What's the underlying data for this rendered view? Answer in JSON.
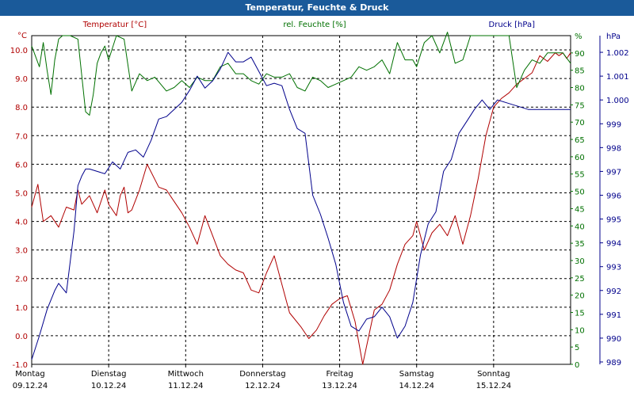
{
  "title": "Temperatur, Feuchte & Druck",
  "chart_data": {
    "type": "line",
    "title": "Temperatur, Feuchte & Druck",
    "x_days": [
      {
        "weekday": "Montag",
        "date": "09.12.24"
      },
      {
        "weekday": "Dienstag",
        "date": "10.12.24"
      },
      {
        "weekday": "Mittwoch",
        "date": "11.12.24"
      },
      {
        "weekday": "Donnerstag",
        "date": "12.12.24"
      },
      {
        "weekday": "Freitag",
        "date": "13.12.24"
      },
      {
        "weekday": "Samstag",
        "date": "14.12.24"
      },
      {
        "weekday": "Sonntag",
        "date": "15.12.24"
      }
    ],
    "x_unit": "days since Montag 09.12.24 00:00",
    "xlim": [
      0,
      7
    ],
    "axes": {
      "temperature": {
        "label": "Temperatur [°C]",
        "unit": "°C",
        "ylim": [
          -1,
          10.5
        ],
        "ticks": [
          "-1.0",
          "0.0",
          "1.0",
          "2.0",
          "3.0",
          "4.0",
          "5.0",
          "6.0",
          "7.0",
          "8.0",
          "9.0",
          "10.0"
        ],
        "color": "#b00000"
      },
      "humidity": {
        "label": "rel. Feuchte [%]",
        "unit": "%",
        "ylim": [
          0,
          95
        ],
        "ticks": [
          "0",
          "5",
          "10",
          "15",
          "20",
          "25",
          "30",
          "35",
          "40",
          "45",
          "50",
          "55",
          "60",
          "65",
          "70",
          "75",
          "80",
          "85",
          "90",
          "95"
        ],
        "color": "#007000"
      },
      "pressure": {
        "label": "Druck [hPa]",
        "unit": "hPa",
        "ylim": [
          988.9,
          1002.7
        ],
        "ticks": [
          "989",
          "990",
          "991",
          "992",
          "993",
          "994",
          "995",
          "996",
          "997",
          "998",
          "999",
          "1.000",
          "1.001",
          "1.002"
        ],
        "color": "#00008b"
      }
    },
    "grid": true,
    "series": [
      {
        "name": "Temperatur [°C]",
        "axis": "temperature",
        "color": "#b00000",
        "x": [
          0,
          0.08,
          0.15,
          0.25,
          0.35,
          0.45,
          0.55,
          0.6,
          0.65,
          0.75,
          0.85,
          0.95,
          1.0,
          1.1,
          1.15,
          1.2,
          1.25,
          1.3,
          1.4,
          1.5,
          1.65,
          1.75,
          1.85,
          1.95,
          2.05,
          2.15,
          2.25,
          2.35,
          2.45,
          2.55,
          2.65,
          2.75,
          2.85,
          2.95,
          3.05,
          3.15,
          3.25,
          3.35,
          3.5,
          3.6,
          3.7,
          3.8,
          3.9,
          4.0,
          4.1,
          4.2,
          4.3,
          4.45,
          4.55,
          4.65,
          4.75,
          4.85,
          4.95,
          5.0,
          5.1,
          5.2,
          5.3,
          5.4,
          5.5,
          5.6,
          5.7,
          5.8,
          5.9,
          6.0,
          6.1,
          6.2,
          6.3,
          6.4,
          6.5,
          6.6,
          6.7,
          6.8,
          6.85,
          6.9,
          6.95,
          7.0
        ],
        "values": [
          4.5,
          5.3,
          4.0,
          4.2,
          3.8,
          4.5,
          4.4,
          5.1,
          4.6,
          4.9,
          4.3,
          5.1,
          4.6,
          4.2,
          4.9,
          5.2,
          4.3,
          4.4,
          5.1,
          6.0,
          5.2,
          5.1,
          4.7,
          4.3,
          3.8,
          3.2,
          4.2,
          3.5,
          2.8,
          2.5,
          2.3,
          2.2,
          1.6,
          1.5,
          2.2,
          2.8,
          1.8,
          0.8,
          0.3,
          -0.1,
          0.2,
          0.7,
          1.1,
          1.3,
          1.4,
          0.5,
          -1.0,
          0.9,
          1.1,
          1.6,
          2.5,
          3.2,
          3.5,
          4.0,
          3.0,
          3.6,
          3.9,
          3.5,
          4.2,
          3.2,
          4.2,
          5.5,
          7.0,
          8.0,
          8.3,
          8.5,
          8.8,
          9.0,
          9.2,
          9.8,
          9.6,
          9.9,
          9.8,
          9.9,
          9.7,
          9.9
        ]
      },
      {
        "name": "rel. Feuchte [%]",
        "axis": "humidity",
        "color": "#007000",
        "x": [
          0,
          0.1,
          0.15,
          0.2,
          0.25,
          0.3,
          0.35,
          0.4,
          0.5,
          0.6,
          0.7,
          0.75,
          0.8,
          0.85,
          0.9,
          0.95,
          1.0,
          1.1,
          1.2,
          1.3,
          1.4,
          1.5,
          1.6,
          1.75,
          1.85,
          1.95,
          2.05,
          2.15,
          2.25,
          2.35,
          2.45,
          2.55,
          2.65,
          2.75,
          2.85,
          2.95,
          3.05,
          3.15,
          3.25,
          3.35,
          3.45,
          3.55,
          3.65,
          3.75,
          3.85,
          3.95,
          4.05,
          4.15,
          4.25,
          4.35,
          4.45,
          4.55,
          4.65,
          4.75,
          4.85,
          4.95,
          5.0,
          5.1,
          5.2,
          5.3,
          5.4,
          5.5,
          5.6,
          5.7,
          5.8,
          5.9,
          6.0,
          6.1,
          6.2,
          6.3,
          6.4,
          6.5,
          6.6,
          6.7,
          6.8,
          6.9,
          7.0
        ],
        "values": [
          92,
          86,
          93,
          85,
          78,
          88,
          94,
          95,
          95,
          94,
          73,
          72,
          78,
          87,
          90,
          92,
          88,
          95,
          94,
          79,
          84,
          82,
          83,
          79,
          80,
          82,
          80,
          83,
          82,
          82,
          86,
          87,
          84,
          84,
          82,
          81,
          84,
          83,
          83,
          84,
          80,
          79,
          83,
          82,
          80,
          81,
          82,
          83,
          86,
          85,
          86,
          88,
          84,
          93,
          88,
          88,
          86,
          93,
          95,
          90,
          96,
          87,
          88,
          95,
          95,
          95,
          95,
          95,
          95,
          80,
          85,
          88,
          87,
          90,
          90,
          90,
          87
        ]
      },
      {
        "name": "Druck [hPa]",
        "axis": "pressure",
        "color": "#00008b",
        "x": [
          0,
          0.1,
          0.2,
          0.3,
          0.35,
          0.45,
          0.55,
          0.6,
          0.65,
          0.7,
          0.75,
          0.85,
          0.95,
          1.05,
          1.15,
          1.25,
          1.35,
          1.45,
          1.55,
          1.65,
          1.75,
          1.85,
          1.95,
          2.05,
          2.15,
          2.25,
          2.35,
          2.45,
          2.55,
          2.65,
          2.75,
          2.85,
          2.95,
          3.05,
          3.15,
          3.25,
          3.35,
          3.45,
          3.55,
          3.65,
          3.75,
          3.85,
          3.95,
          4.05,
          4.15,
          4.25,
          4.35,
          4.45,
          4.55,
          4.65,
          4.75,
          4.85,
          4.95,
          5.05,
          5.15,
          5.25,
          5.35,
          5.45,
          5.55,
          5.65,
          5.75,
          5.85,
          5.95,
          6.05,
          6.15,
          6.25,
          6.35,
          6.45,
          6.55,
          6.65,
          6.75,
          6.85,
          6.95,
          7.0
        ],
        "values": [
          989.1,
          990.1,
          991.2,
          992.0,
          992.3,
          991.9,
          994.5,
          996.4,
          996.8,
          997.1,
          997.1,
          997.0,
          996.9,
          997.4,
          997.1,
          997.8,
          997.9,
          997.6,
          998.3,
          999.2,
          999.3,
          999.6,
          999.9,
          1000.4,
          1001.0,
          1000.5,
          1000.8,
          1001.3,
          1002.0,
          1001.6,
          1001.6,
          1001.8,
          1001.2,
          1000.6,
          1000.7,
          1000.6,
          999.6,
          998.8,
          998.6,
          996.0,
          995.2,
          994.2,
          993.1,
          991.5,
          990.5,
          990.3,
          990.8,
          990.9,
          991.3,
          990.9,
          990.0,
          990.5,
          991.5,
          993.5,
          994.8,
          995.3,
          997.0,
          997.5,
          998.6,
          999.1,
          999.6,
          1000.0,
          999.6,
          1000.0,
          999.9,
          999.8,
          999.7,
          999.6,
          999.6,
          999.6,
          999.6,
          999.6,
          999.6,
          999.6
        ]
      }
    ]
  }
}
